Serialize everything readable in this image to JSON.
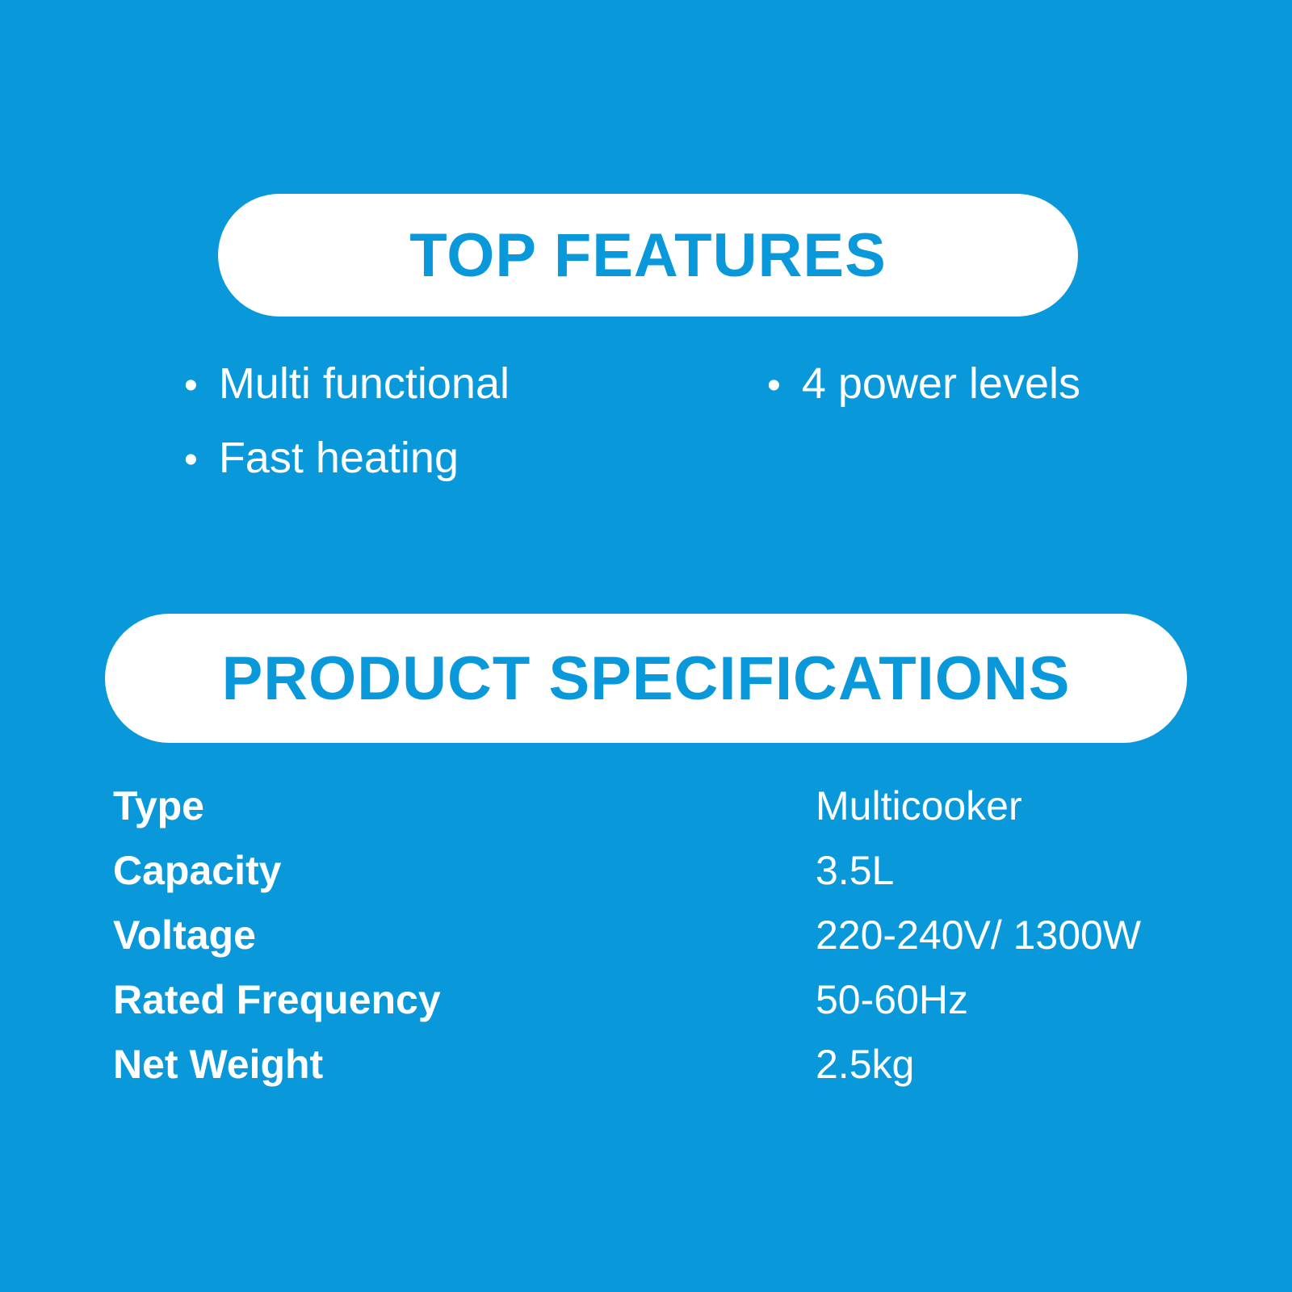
{
  "theme": {
    "background_color": "#0999DA",
    "banner_background": "#FFFFFF",
    "banner_text_color": "#0999DA",
    "body_text_color": "#FFFFFF"
  },
  "top_features": {
    "title": "TOP FEATURES",
    "bullet_glyph": "•",
    "items": [
      {
        "text": "Multi functional"
      },
      {
        "text": "Fast heating"
      },
      {
        "text": "4 power levels"
      }
    ]
  },
  "product_specifications": {
    "title": "PRODUCT SPECIFICATIONS",
    "rows": [
      {
        "label": "Type",
        "value": "Multicooker"
      },
      {
        "label": "Capacity",
        "value": "3.5L"
      },
      {
        "label": "Voltage",
        "value": "220-240V/ 1300W"
      },
      {
        "label": "Rated Frequency",
        "value": "50-60Hz"
      },
      {
        "label": "Net Weight",
        "value": "2.5kg"
      }
    ]
  }
}
